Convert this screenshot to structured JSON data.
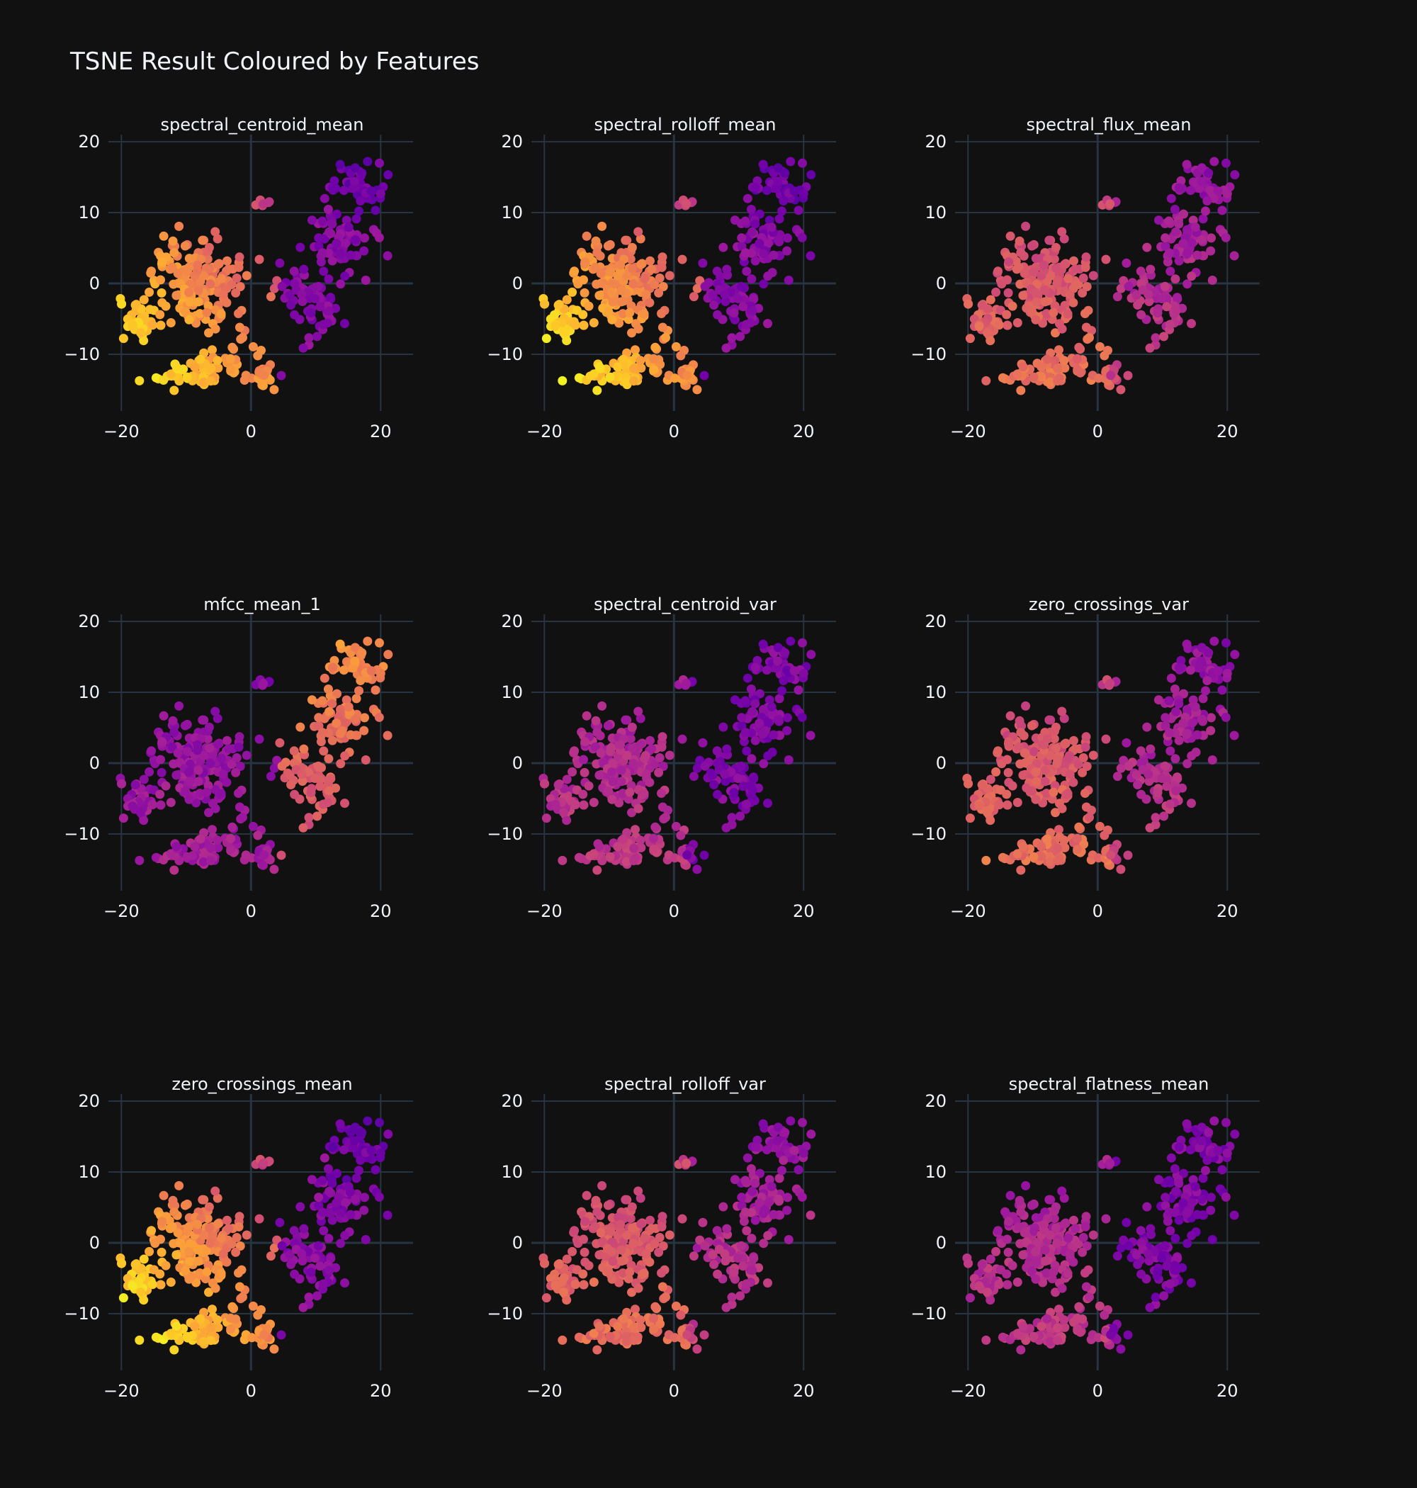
{
  "chart_data": {
    "type": "scatter",
    "title": "TSNE Result Coloured by Features",
    "x_range": [
      -22,
      25
    ],
    "y_range": [
      -18,
      21
    ],
    "x_ticks": [
      -20,
      0,
      20
    ],
    "y_ticks": [
      20,
      10,
      0,
      -10
    ],
    "x_tick_labels": [
      "−20",
      "0",
      "20"
    ],
    "y_tick_labels": [
      "20",
      "10",
      "0",
      "−10"
    ],
    "grid": true,
    "colorscale": [
      "#0d0887",
      "#46039f",
      "#7201a8",
      "#9c179e",
      "#bd3786",
      "#d8576b",
      "#ed7953",
      "#fb9f3a",
      "#fdca26",
      "#f0f921"
    ],
    "panels": [
      {
        "title": "spectral_centroid_mean",
        "pattern": "left_bottom_high"
      },
      {
        "title": "spectral_rolloff_mean",
        "pattern": "left_bottom_high"
      },
      {
        "title": "spectral_flux_mean",
        "pattern": "left_mid"
      },
      {
        "title": "mfcc_mean_1",
        "pattern": "right_high"
      },
      {
        "title": "spectral_centroid_var",
        "pattern": "low_purple"
      },
      {
        "title": "zero_crossings_var",
        "pattern": "left_mid"
      },
      {
        "title": "zero_crossings_mean",
        "pattern": "left_bottom_high"
      },
      {
        "title": "spectral_rolloff_var",
        "pattern": "left_mid"
      },
      {
        "title": "spectral_flatness_mean",
        "pattern": "low_purple"
      }
    ]
  }
}
